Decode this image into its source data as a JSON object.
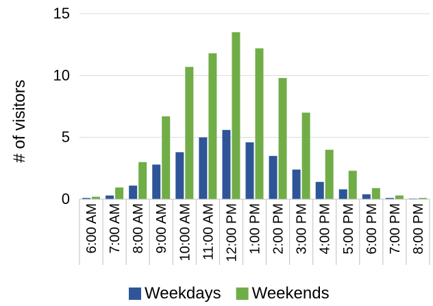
{
  "chart_data": {
    "type": "bar",
    "title": "",
    "xlabel": "",
    "ylabel": "# of visitors",
    "ylim": [
      0,
      15
    ],
    "yticks": [
      0,
      5,
      10,
      15
    ],
    "grid": true,
    "legend_position": "bottom",
    "categories": [
      "6:00 AM",
      "7:00 AM",
      "8:00 AM",
      "9:00 AM",
      "10:00 AM",
      "11:00 AM",
      "12:00 PM",
      "1:00 PM",
      "2:00 PM",
      "3:00 PM",
      "4:00 PM",
      "5:00 PM",
      "6:00 PM",
      "7:00 PM",
      "8:00 PM"
    ],
    "series": [
      {
        "name": "Weekdays",
        "color": "#2e5597",
        "values": [
          0.1,
          0.3,
          1.1,
          2.8,
          3.8,
          5.0,
          5.6,
          4.6,
          3.5,
          2.4,
          1.4,
          0.8,
          0.4,
          0.1,
          0.05
        ]
      },
      {
        "name": "Weekends",
        "color": "#70ad47",
        "values": [
          0.2,
          0.95,
          3.0,
          6.7,
          10.7,
          11.8,
          13.5,
          12.2,
          9.8,
          7.0,
          4.0,
          2.3,
          0.9,
          0.3,
          0.1
        ]
      }
    ]
  }
}
